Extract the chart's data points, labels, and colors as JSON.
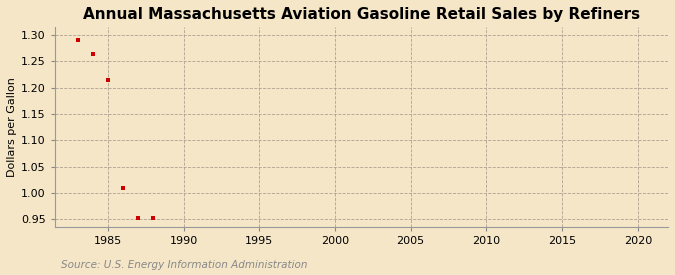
{
  "title": "Annual Massachusetts Aviation Gasoline Retail Sales by Refiners",
  "ylabel": "Dollars per Gallon",
  "source": "Source: U.S. Energy Information Administration",
  "background_color": "#f5e6c8",
  "plot_bg_color": "#f5e6c8",
  "data_color": "#cc0000",
  "x_values": [
    1983,
    1984,
    1985,
    1986,
    1987,
    1988
  ],
  "y_values": [
    1.29,
    1.265,
    1.215,
    1.01,
    0.953,
    0.953
  ],
  "xlim": [
    1981.5,
    2022
  ],
  "ylim": [
    0.935,
    1.315
  ],
  "xticks": [
    1985,
    1990,
    1995,
    2000,
    2005,
    2010,
    2015,
    2020
  ],
  "yticks": [
    0.95,
    1.0,
    1.05,
    1.1,
    1.15,
    1.2,
    1.25,
    1.3
  ],
  "grid_color": "#b0a090",
  "title_fontsize": 11,
  "label_fontsize": 8,
  "tick_fontsize": 8,
  "source_fontsize": 7.5
}
